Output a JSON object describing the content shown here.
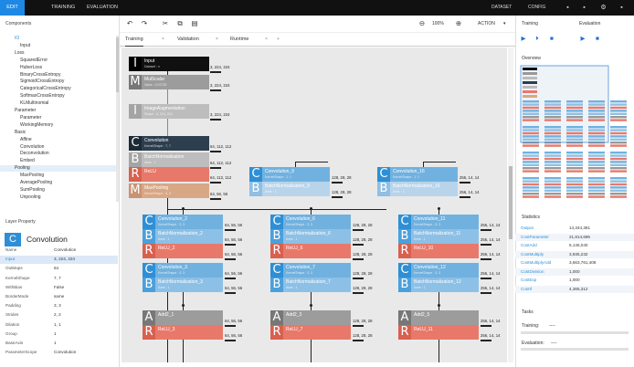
{
  "topbar": {
    "tabs": [
      "EDIT",
      "TRAINING",
      "EVALUATION"
    ],
    "right": [
      "DATASET",
      "CONFIG"
    ]
  },
  "left": {
    "components_title": "Components",
    "tree": [
      {
        "label": "IO",
        "level": 0,
        "color": "#2e8fd6"
      },
      {
        "label": "Input",
        "level": 2
      },
      {
        "label": "Loss",
        "level": 1
      },
      {
        "label": "SquaredError",
        "level": 2
      },
      {
        "label": "HuberLoss",
        "level": 2
      },
      {
        "label": "BinaryCrossEntropy",
        "level": 2
      },
      {
        "label": "SigmoidCrossEntropy",
        "level": 2
      },
      {
        "label": "CategoricalCrossEntropy",
        "level": 2
      },
      {
        "label": "SoftmaxCrossEntropy",
        "level": 2
      },
      {
        "label": "KLMultinomial",
        "level": 2
      },
      {
        "label": "Parameter",
        "level": 1
      },
      {
        "label": "Parameter",
        "level": 2
      },
      {
        "label": "WorkingMemory",
        "level": 2
      },
      {
        "label": "Basic",
        "level": 1
      },
      {
        "label": "Affine",
        "level": 2
      },
      {
        "label": "Convolution",
        "level": 2
      },
      {
        "label": "Deconvolution",
        "level": 2
      },
      {
        "label": "Embed",
        "level": 2
      },
      {
        "label": "Pooling",
        "level": 1,
        "selected": true
      },
      {
        "label": "MaxPooling",
        "level": 2
      },
      {
        "label": "AveragePooling",
        "level": 2
      },
      {
        "label": "SumPooling",
        "level": 2
      },
      {
        "label": "Unpooling",
        "level": 2
      }
    ],
    "layer_property_title": "Layer Property",
    "layer_letter": "C",
    "layer_type": "Convolution",
    "props": [
      {
        "k": "Name",
        "v": "Convolution"
      },
      {
        "k": "Input",
        "v": "3, 224, 224",
        "hl": true
      },
      {
        "k": "OutMaps",
        "v": "64"
      },
      {
        "k": "KernelShape",
        "v": "7, 7"
      },
      {
        "k": "WithBias",
        "v": "False"
      },
      {
        "k": "BorderMode",
        "v": "same"
      },
      {
        "k": "Padding",
        "v": "3, 3"
      },
      {
        "k": "Strides",
        "v": "2, 2"
      },
      {
        "k": "Dilation",
        "v": "1, 1"
      },
      {
        "k": "Group",
        "v": "1"
      },
      {
        "k": "BaseAxis",
        "v": "1"
      },
      {
        "k": "ParameterScope",
        "v": "Convolution"
      }
    ]
  },
  "toolbar": {
    "zoom": "100%",
    "action": "ACTION"
  },
  "tabs": [
    {
      "label": "Training",
      "active": true
    },
    {
      "label": "Validation"
    },
    {
      "label": "Runtime"
    }
  ],
  "graph": {
    "main": [
      {
        "icon": "I",
        "t1": "Input",
        "t2": "Dataset : x",
        "shape": "3, 224, 224",
        "style": "n-blk"
      },
      {
        "icon": "M",
        "t1": "MulScalar",
        "t2": "Value : 0.01735",
        "shape": "3, 224, 224",
        "style": "n-gray"
      },
      {
        "icon": "I",
        "t1": "ImageAugmentation",
        "t2": "Shape : 3, 224, 224",
        "shape": "3, 224, 224",
        "style": "n-ltgray"
      },
      {
        "icon": "C",
        "t1": "Convolution",
        "t2": "KernelShape : 7, 7",
        "shape": "64, 112, 112",
        "style": "n-navy"
      },
      {
        "icon": "B",
        "t1": "BatchNormalization",
        "t2": "Axes : 1",
        "shape": "64, 112, 112",
        "style": "n-ltgray"
      },
      {
        "icon": "R",
        "t1": "ReLU",
        "t2": "",
        "shape": "64, 112, 112",
        "style": "n-red"
      },
      {
        "icon": "M",
        "t1": "MaxPooling",
        "t2": "KernelShape : 3, 3",
        "shape": "64, 56, 56",
        "style": "n-tan"
      }
    ],
    "columns": [
      {
        "top": [
          {
            "icon": "C",
            "t1": "Convolution_9",
            "t2": "KernelShape : 1, 1",
            "style": "n-blue"
          },
          {
            "icon": "B",
            "t1": "BatchNormalization_9",
            "t2": "Axes : 1",
            "style": "n-bluefade"
          }
        ],
        "top_shapes": [
          "128, 28, 28",
          "128, 28, 28"
        ],
        "blocks": [
          {
            "icon": "C",
            "t1": "Convolution_2",
            "t2": "KernelShape : 3, 3",
            "style": "n-blue",
            "shape": "64, 56, 56"
          },
          {
            "icon": "B",
            "t1": "BatchNormalization_2",
            "t2": "Axes : 1",
            "style": "n-blue2",
            "shape": "64, 56, 56"
          },
          {
            "icon": "R",
            "t1": "ReLU_2",
            "t2": "",
            "style": "n-red",
            "shape": "64, 56, 56"
          },
          {
            "icon": "C",
            "t1": "Convolution_3",
            "t2": "KernelShape : 3, 3",
            "style": "n-blue",
            "shape": "64, 56, 56"
          },
          {
            "icon": "B",
            "t1": "BatchNormalization_3",
            "t2": "Axes : 1",
            "style": "n-blue2",
            "shape": "64, 56, 56"
          }
        ],
        "bottom": [
          {
            "icon": "A",
            "t1": "Add2_1",
            "t2": "",
            "style": "n-gray",
            "shape": "64, 56, 56"
          },
          {
            "icon": "R",
            "t1": "ReLU_3",
            "t2": "",
            "style": "n-red",
            "shape": "64, 56, 56"
          }
        ]
      },
      {
        "top": [
          {
            "icon": "C",
            "t1": "Convolution_16",
            "t2": "KernelShape : 1, 1",
            "style": "n-blue"
          },
          {
            "icon": "B",
            "t1": "BatchNormalization_16",
            "t2": "Axes : 1",
            "style": "n-bluefade"
          }
        ],
        "top_shapes": [
          "256, 14, 14",
          "256, 14, 14"
        ],
        "blocks": [
          {
            "icon": "C",
            "t1": "Convolution_6",
            "t2": "KernelShape : 3, 3",
            "style": "n-blue",
            "shape": "128, 28, 28"
          },
          {
            "icon": "B",
            "t1": "BatchNormalization_6",
            "t2": "Axes : 1",
            "style": "n-blue2",
            "shape": "128, 28, 28"
          },
          {
            "icon": "R",
            "t1": "ReLU_6",
            "t2": "",
            "style": "n-red",
            "shape": "128, 28, 28"
          },
          {
            "icon": "C",
            "t1": "Convolution_7",
            "t2": "KernelShape : 3, 3",
            "style": "n-blue",
            "shape": "128, 28, 28"
          },
          {
            "icon": "B",
            "t1": "BatchNormalization_7",
            "t2": "Axes : 1",
            "style": "n-blue2",
            "shape": "128, 28, 28"
          }
        ],
        "bottom": [
          {
            "icon": "A",
            "t1": "Add2_3",
            "t2": "",
            "style": "n-gray",
            "shape": "128, 28, 28"
          },
          {
            "icon": "R",
            "t1": "ReLU_7",
            "t2": "",
            "style": "n-red",
            "shape": "128, 28, 28"
          }
        ]
      },
      {
        "top": [],
        "top_shapes": [],
        "blocks": [
          {
            "icon": "C",
            "t1": "Convolution_11",
            "t2": "KernelShape : 3, 3",
            "style": "n-blue",
            "shape": "256, 14, 14"
          },
          {
            "icon": "B",
            "t1": "BatchNormalization_11",
            "t2": "Axes : 1",
            "style": "n-blue2",
            "shape": "256, 14, 14"
          },
          {
            "icon": "R",
            "t1": "ReLU_10",
            "t2": "",
            "style": "n-red",
            "shape": "256, 14, 14"
          },
          {
            "icon": "C",
            "t1": "Convolution_12",
            "t2": "KernelShape : 3, 3",
            "style": "n-blue",
            "shape": "256, 14, 14"
          },
          {
            "icon": "B",
            "t1": "BatchNormalization_12",
            "t2": "Axes : 1",
            "style": "n-blue2",
            "shape": "256, 14, 14"
          }
        ],
        "bottom": [
          {
            "icon": "A",
            "t1": "Add2_5",
            "t2": "",
            "style": "n-gray",
            "shape": "256, 14, 14"
          },
          {
            "icon": "R",
            "t1": "ReLU_11",
            "t2": "",
            "style": "n-red",
            "shape": "256, 14, 14"
          }
        ]
      }
    ]
  },
  "right": {
    "training": "Training",
    "evaluation": "Evaluation",
    "overview": "Overview",
    "statistics": "Statistics",
    "stats": [
      {
        "k": "Output",
        "v": "14,344,361"
      },
      {
        "k": "CostParameter",
        "v": "21,814,696"
      },
      {
        "k": "CostAdd",
        "v": "5,145,040"
      },
      {
        "k": "CostMultiply",
        "v": "3,935,232"
      },
      {
        "k": "CostMultiplyAdd",
        "v": "3,663,761,408"
      },
      {
        "k": "CostDivision",
        "v": "1,000"
      },
      {
        "k": "CostExp",
        "v": "1,000"
      },
      {
        "k": "CostIf",
        "v": "4,365,312"
      }
    ],
    "tasks": "Tasks",
    "task_training": "Training:",
    "task_training_val": "----",
    "task_evaluation": "Evaluation:",
    "task_evaluation_val": "----"
  },
  "colors": {
    "accent": "#1e88e5",
    "blue": "#2e8fd6",
    "red": "#e8796a",
    "topbar": "#111111"
  }
}
